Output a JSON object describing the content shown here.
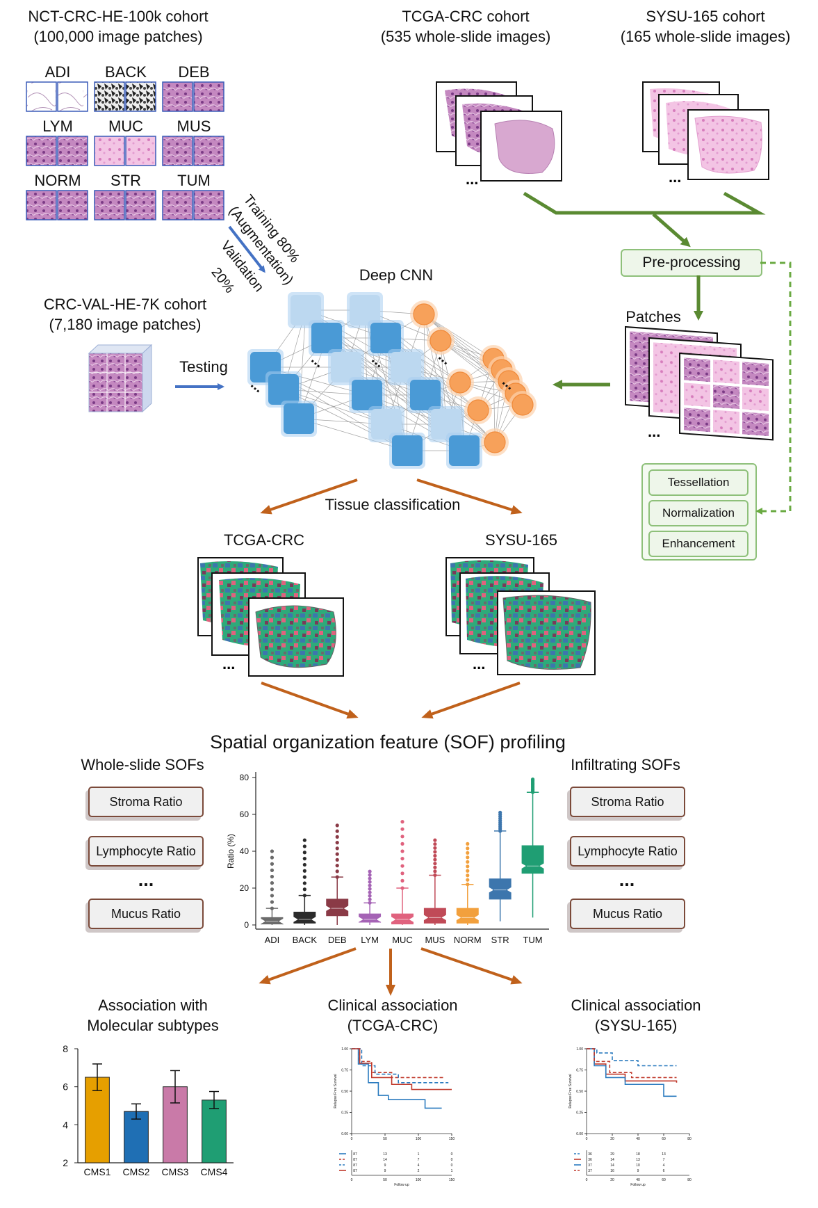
{
  "cohorts": {
    "nct_title": "NCT-CRC-HE-100k cohort",
    "nct_sub": "(100,000 image patches)",
    "tcga_title": "TCGA-CRC cohort",
    "tcga_sub": "(535 whole-slide images)",
    "sysu_title": "SYSU-165 cohort",
    "sysu_sub": "(165 whole-slide images)",
    "val_title": "CRC-VAL-HE-7K cohort",
    "val_sub": "(7,180 image patches)"
  },
  "tissue_classes": [
    "ADI",
    "BACK",
    "DEB",
    "LYM",
    "MUC",
    "MUS",
    "NORM",
    "STR",
    "TUM"
  ],
  "training": {
    "line1": "Training 80%",
    "line2": "(Augmentation)"
  },
  "validation": {
    "line1": "Validation",
    "line2": "20%"
  },
  "testing_label": "Testing",
  "cnn_label": "Deep CNN",
  "preprocessing": {
    "label": "Pre-processing",
    "patches_label": "Patches",
    "steps": [
      "Tessellation",
      "Normalization",
      "Enhancement"
    ]
  },
  "tissue_classification": "Tissue classification",
  "maps": {
    "left": "TCGA-CRC",
    "right": "SYSU-165"
  },
  "ellipsis": "...",
  "sof": {
    "title_pre": "Spatial organization feature (",
    "title_abbr": "SOF",
    "title_post": ") profiling",
    "whole_slide_title": "Whole-slide SOFs",
    "infiltrating_title": "Infiltrating SOFs",
    "whole_slide_items": [
      "Stroma Ratio",
      "Lymphocyte Ratio",
      "Mucus Ratio"
    ],
    "infiltrating_items": [
      "Stroma Ratio",
      "Lymphocyte Ratio",
      "Mucus Ratio"
    ]
  },
  "outputs": {
    "molecular_title1": "Association with",
    "molecular_title2": "Molecular subtypes",
    "tcga_title1": "Clinical association",
    "tcga_title2": "(TCGA-CRC)",
    "sysu_title1": "Clinical association",
    "sysu_title2": "(SYSU-165)"
  },
  "colors": {
    "blue_arrow": "#4472c4",
    "green_arrow": "#5a8a32",
    "brown_arrow": "#c0611b",
    "node_blue": "#4a9ad6",
    "node_light": "#bcd8f0",
    "node_orange": "#f7a15a"
  },
  "chart_data": [
    {
      "type": "box",
      "ylabel": "Ratio (%)",
      "ylim": [
        0,
        80
      ],
      "yticks": [
        0,
        20,
        40,
        60,
        80
      ],
      "categories": [
        "ADI",
        "BACK",
        "DEB",
        "LYM",
        "MUC",
        "MUS",
        "NORM",
        "STR",
        "TUM"
      ],
      "colors": [
        "#6b6b6b",
        "#2b2b2b",
        "#8a3a46",
        "#a563b5",
        "#e0627e",
        "#c04a57",
        "#f2a03d",
        "#3d76ad",
        "#1f9e73"
      ],
      "median": [
        2,
        3,
        9,
        3,
        3,
        4,
        4,
        19,
        32
      ],
      "q1": [
        0.5,
        1,
        5,
        1.5,
        0.5,
        1,
        1,
        14,
        28
      ],
      "q3": [
        4,
        7,
        14,
        6,
        6,
        9,
        9,
        25,
        43
      ],
      "whisker_low": [
        0,
        0,
        0,
        0,
        0,
        0,
        0,
        2,
        4
      ],
      "whisker_high": [
        9,
        16,
        26,
        12,
        20,
        27,
        22,
        51,
        72
      ],
      "outlier_max": [
        40,
        46,
        54,
        29,
        56,
        46,
        44,
        61,
        79
      ]
    },
    {
      "type": "bar",
      "categories": [
        "CMS1",
        "CMS2",
        "CMS3",
        "CMS4"
      ],
      "values": [
        6.5,
        4.7,
        6.0,
        5.3
      ],
      "error": [
        0.7,
        0.4,
        0.85,
        0.45
      ],
      "colors": [
        "#e69f00",
        "#1f6fb4",
        "#c97aa8",
        "#1f9e73"
      ],
      "ylim": [
        2,
        8
      ],
      "yticks": [
        2,
        4,
        6,
        8
      ]
    },
    {
      "type": "line",
      "title": "Clinical association (TCGA-CRC)",
      "ylabel": "Relapse Free Survival",
      "xlabel": "Follow up",
      "xticks": [
        0,
        50,
        100,
        150
      ],
      "yticks": [
        0.0,
        0.25,
        0.5,
        0.75,
        1.0
      ],
      "ytick_labels": [
        "0.00",
        "0.25",
        "0.50",
        "0.75",
        "1.00"
      ],
      "series": [
        {
          "color": "#2b7bbf",
          "dash": false,
          "points": [
            [
              0,
              1
            ],
            [
              10,
              0.82
            ],
            [
              25,
              0.6
            ],
            [
              40,
              0.45
            ],
            [
              55,
              0.4
            ],
            [
              110,
              0.4
            ],
            [
              110,
              0.3
            ],
            [
              135,
              0.3
            ]
          ]
        },
        {
          "color": "#c0392b",
          "dash": true,
          "points": [
            [
              0,
              1
            ],
            [
              12,
              0.85
            ],
            [
              30,
              0.72
            ],
            [
              60,
              0.66
            ],
            [
              140,
              0.66
            ]
          ]
        },
        {
          "color": "#2b7bbf",
          "dash": true,
          "points": [
            [
              0,
              1
            ],
            [
              15,
              0.8
            ],
            [
              35,
              0.7
            ],
            [
              70,
              0.6
            ],
            [
              145,
              0.6
            ]
          ]
        },
        {
          "color": "#c0392b",
          "dash": false,
          "points": [
            [
              0,
              1
            ],
            [
              12,
              0.83
            ],
            [
              30,
              0.66
            ],
            [
              60,
              0.58
            ],
            [
              90,
              0.52
            ],
            [
              150,
              0.52
            ]
          ]
        }
      ],
      "risk_table": [
        [
          87,
          13,
          1,
          0
        ],
        [
          87,
          14,
          7,
          0
        ],
        [
          87,
          9,
          4,
          0
        ],
        [
          87,
          9,
          2,
          1
        ]
      ]
    },
    {
      "type": "line",
      "title": "Clinical association (SYSU-165)",
      "ylabel": "Relapse Free Survival",
      "xlabel": "Follow up",
      "xticks": [
        0,
        20,
        40,
        60,
        80
      ],
      "yticks": [
        0.0,
        0.25,
        0.5,
        0.75,
        1.0
      ],
      "ytick_labels": [
        "0.00",
        "0.25",
        "0.50",
        "0.75",
        "1.00"
      ],
      "series": [
        {
          "color": "#2b7bbf",
          "dash": true,
          "points": [
            [
              0,
              1
            ],
            [
              8,
              0.95
            ],
            [
              20,
              0.86
            ],
            [
              40,
              0.8
            ],
            [
              70,
              0.8
            ]
          ]
        },
        {
          "color": "#c0392b",
          "dash": false,
          "points": [
            [
              0,
              1
            ],
            [
              6,
              0.82
            ],
            [
              15,
              0.7
            ],
            [
              30,
              0.62
            ],
            [
              70,
              0.6
            ]
          ]
        },
        {
          "color": "#2b7bbf",
          "dash": false,
          "points": [
            [
              0,
              1
            ],
            [
              6,
              0.8
            ],
            [
              15,
              0.66
            ],
            [
              30,
              0.58
            ],
            [
              60,
              0.55
            ],
            [
              60,
              0.44
            ],
            [
              70,
              0.44
            ]
          ]
        },
        {
          "color": "#c0392b",
          "dash": true,
          "points": [
            [
              0,
              1
            ],
            [
              6,
              0.85
            ],
            [
              18,
              0.72
            ],
            [
              35,
              0.66
            ],
            [
              70,
              0.66
            ]
          ]
        }
      ],
      "risk_table": [
        [
          36,
          29,
          18,
          13
        ],
        [
          36,
          14,
          13,
          7
        ],
        [
          37,
          14,
          10,
          4
        ],
        [
          37,
          16,
          9,
          6
        ]
      ]
    }
  ]
}
